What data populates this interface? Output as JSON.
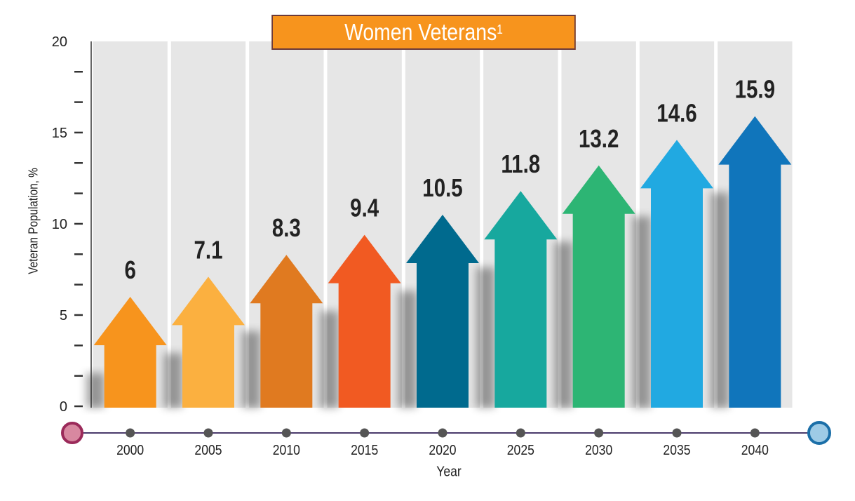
{
  "chart_data": {
    "type": "bar",
    "title": "Women Veterans",
    "title_superscript": "1",
    "xlabel": "Year",
    "ylabel": "Veteran Population, %",
    "categories": [
      "2000",
      "2005",
      "2010",
      "2015",
      "2020",
      "2025",
      "2030",
      "2035",
      "2040"
    ],
    "values": [
      6,
      7.1,
      8.3,
      9.4,
      10.5,
      11.8,
      13.2,
      14.6,
      15.9
    ],
    "value_labels": [
      "6",
      "7.1",
      "8.3",
      "9.4",
      "10.5",
      "11.8",
      "13.2",
      "14.6",
      "15.9"
    ],
    "ylim": [
      0,
      20
    ],
    "yticks": [
      0,
      5,
      10,
      15,
      20
    ],
    "yticks_minor_step": 1.667,
    "grid": false,
    "legend": "none",
    "bar_style": "upward-arrow",
    "colors": [
      "#f7941d",
      "#fbb040",
      "#e07a20",
      "#f15a22",
      "#006a8e",
      "#17a89e",
      "#2db574",
      "#21a9e1",
      "#1075bb"
    ],
    "background_column_color": "#e6e6e6",
    "timeline": {
      "line_color": "#4a3a6b",
      "dot_color": "#555555",
      "start_marker_color": "#d888a0",
      "start_marker_border": "#9b2a5a",
      "end_marker_color": "#9ecbe6",
      "end_marker_border": "#1b6fa8"
    }
  }
}
